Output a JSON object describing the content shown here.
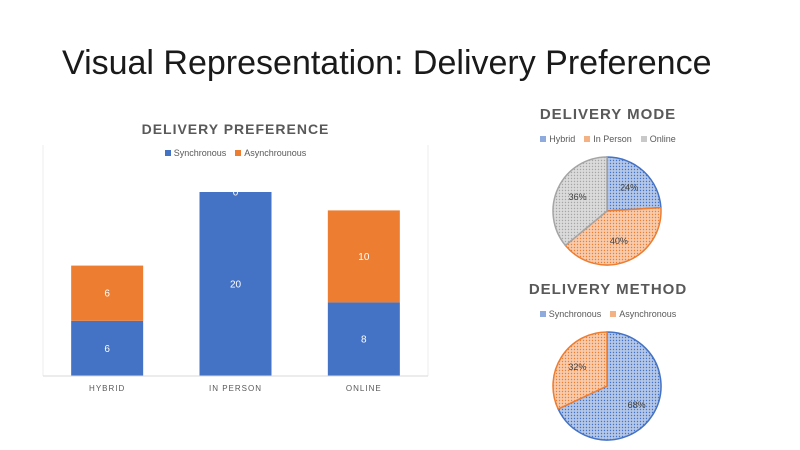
{
  "slide": {
    "title": "Visual Representation: Delivery Preference"
  },
  "chart_data": [
    {
      "type": "bar",
      "stacked": true,
      "title": "DELIVERY PREFERENCE",
      "categories": [
        "HYBRID",
        "IN PERSON",
        "ONLINE"
      ],
      "series": [
        {
          "name": "Synchronous",
          "values": [
            6,
            20,
            8
          ],
          "color": "#4472C4",
          "labels": [
            "6",
            "20",
            "8"
          ]
        },
        {
          "name": "Asynchrounous",
          "values": [
            6,
            0,
            10
          ],
          "color": "#ED7D31",
          "labels": [
            "6",
            "0",
            "10"
          ]
        }
      ],
      "ylim": [
        0,
        25
      ],
      "legend": "top",
      "grid": false
    },
    {
      "type": "pie",
      "title": "DELIVERY MODE",
      "labels": [
        "Hybrid",
        "In Person",
        "Online"
      ],
      "values": [
        24,
        40,
        36
      ],
      "value_labels": [
        "24%",
        "40%",
        "36%"
      ],
      "colors": [
        "#4472C4",
        "#ED7D31",
        "#A5A5A5"
      ],
      "legend": "top"
    },
    {
      "type": "pie",
      "title": "DELIVERY METHOD",
      "labels": [
        "Synchronous",
        "Asynchronous"
      ],
      "values": [
        68,
        32
      ],
      "value_labels": [
        "68%",
        "32%"
      ],
      "colors": [
        "#4472C4",
        "#ED7D31"
      ],
      "legend": "top"
    }
  ]
}
